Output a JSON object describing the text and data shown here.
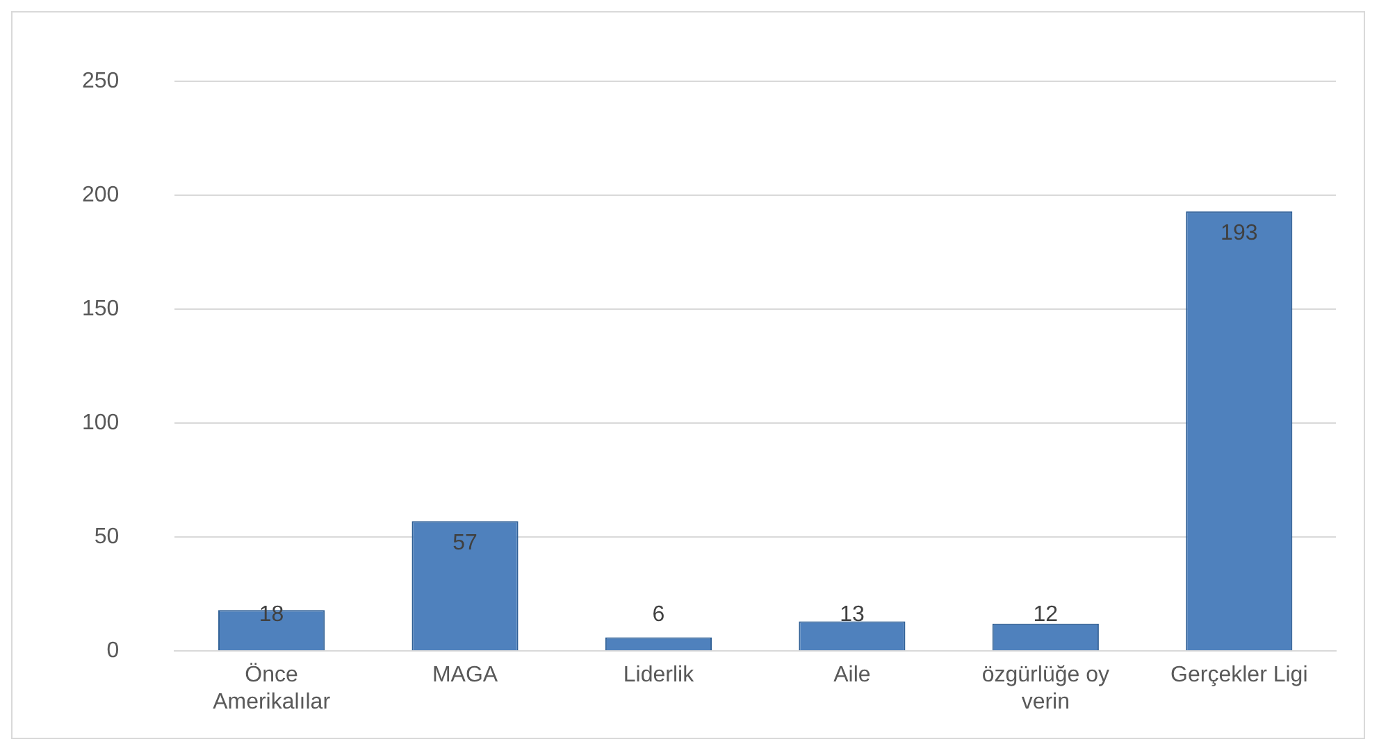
{
  "chart_data": {
    "type": "bar",
    "categories": [
      "Önce Amerikalılar",
      "MAGA",
      "Liderlik",
      "Aile",
      "özgürlüğe oy verin",
      "Gerçekler Ligi"
    ],
    "values": [
      18,
      57,
      6,
      13,
      12,
      193
    ],
    "color": "#4f81bd",
    "ylim": [
      0,
      250
    ],
    "yticks": [
      0,
      50,
      100,
      150,
      200,
      250
    ],
    "grid": "y",
    "data_labels": true,
    "legend": false
  }
}
